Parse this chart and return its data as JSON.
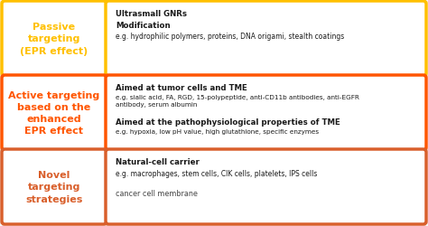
{
  "background_color": "#f5f5f5",
  "rows": [
    {
      "left_border": "#FFC000",
      "left_fill": "#FFF9E6",
      "left_text": "Passive\ntargeting\n(EPR effect)",
      "left_text_color": "#FFC000",
      "right_border": "#FFC000",
      "right_title1": "Ultrasmall GNRs",
      "right_title2": "Modification",
      "right_body1": "e.g. hydrophilic polymers, proteins, DNA origami, stealth coatings",
      "right_body2": ""
    },
    {
      "left_border": "#FF5500",
      "left_fill": "#FFF0E6",
      "left_text": "Active targeting\nbased on the\nenhanced\nEPR effect",
      "left_text_color": "#FF5500",
      "right_border": "#FF5500",
      "right_title1": "Aimed at tumor cells and TME",
      "right_title2": "Aimed at the pathophysiological properties of TME",
      "right_body1": "e.g. sialic acid, FA, RGD, 15-polypeptide, anti-CD11b antibodies, anti-EGFR\nantibody, serum albumin",
      "right_body2": "e.g. hypoxia, low pH value, high glutathione, specific enzymes"
    },
    {
      "left_border": "#D95F2B",
      "left_fill": "#FCEEE6",
      "left_text": "Novel\ntargeting\nstrategies",
      "left_text_color": "#D95F2B",
      "right_border": "#D95F2B",
      "right_title1": "Natural-cell carrier",
      "right_title2": "cancer cell membrane",
      "right_body1": "e.g. macrophages, stem cells, CIK cells, platelets, IPS cells",
      "right_body2": ""
    }
  ]
}
